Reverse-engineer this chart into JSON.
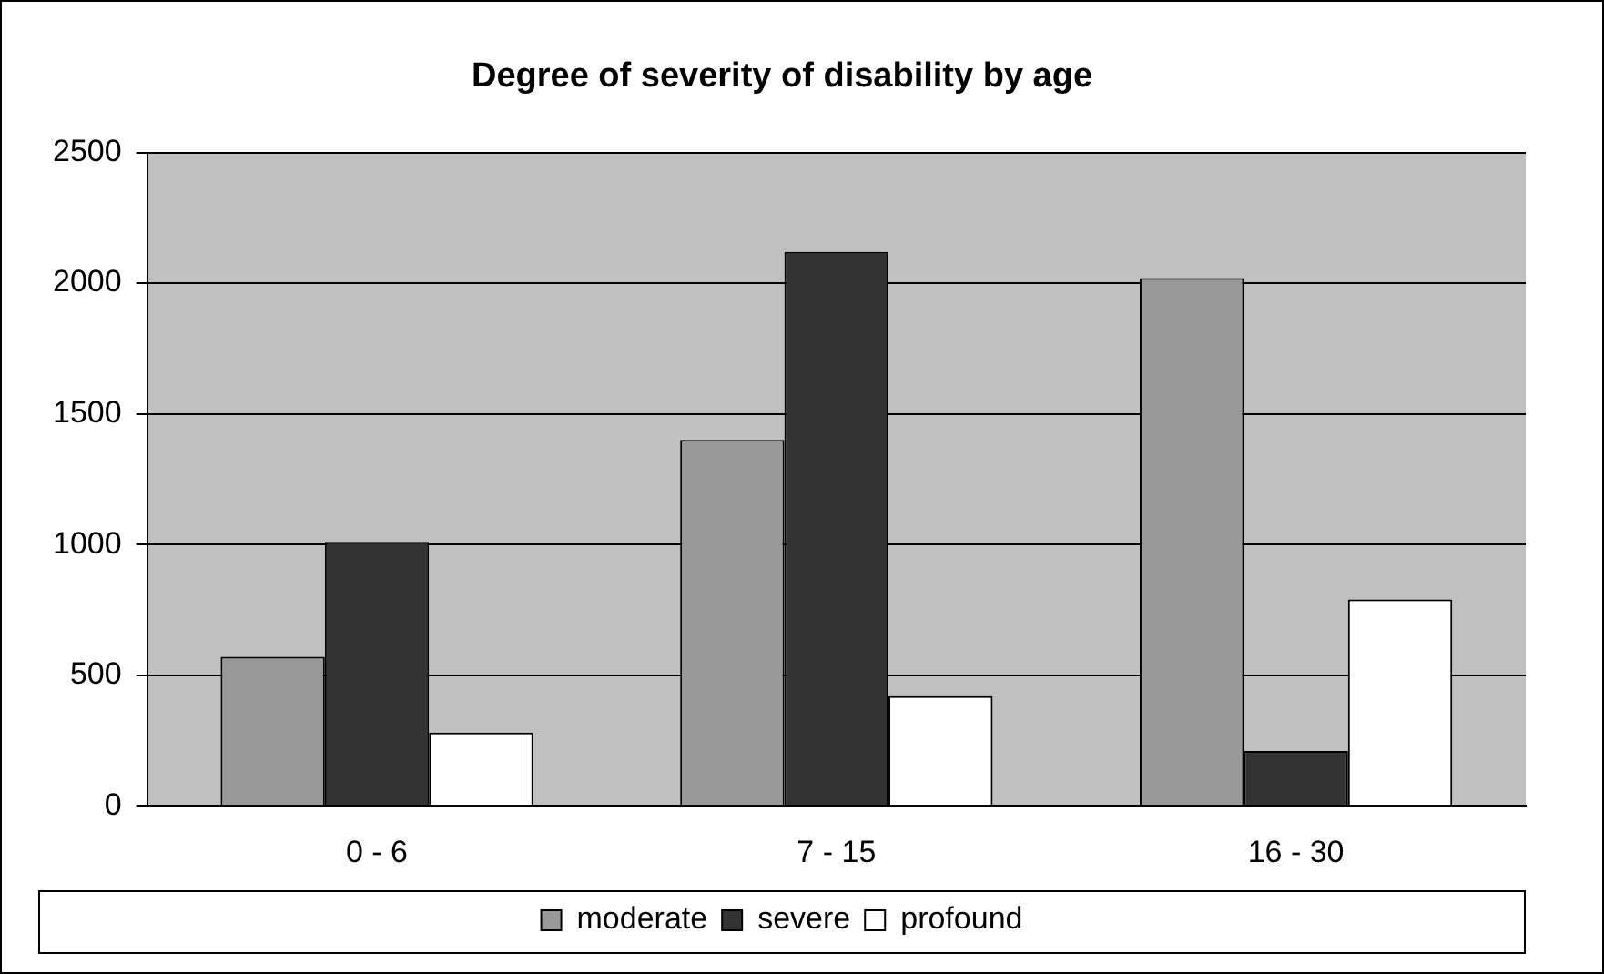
{
  "chart_data": {
    "type": "bar",
    "title": "Degree of severity of disability by age",
    "categories": [
      "0 - 6",
      "7 - 15",
      "16 - 30"
    ],
    "series": [
      {
        "name": "moderate",
        "color": "#999999",
        "values": [
          570,
          1400,
          2020
        ]
      },
      {
        "name": "severe",
        "color": "#333333",
        "values": [
          1010,
          2120,
          210
        ]
      },
      {
        "name": "profound",
        "color": "#ffffff",
        "values": [
          280,
          420,
          790
        ]
      }
    ],
    "ylim": [
      0,
      2500
    ],
    "yticks": [
      0,
      500,
      1000,
      1500,
      2000,
      2500
    ],
    "grid": "y",
    "legend": "bottom"
  }
}
